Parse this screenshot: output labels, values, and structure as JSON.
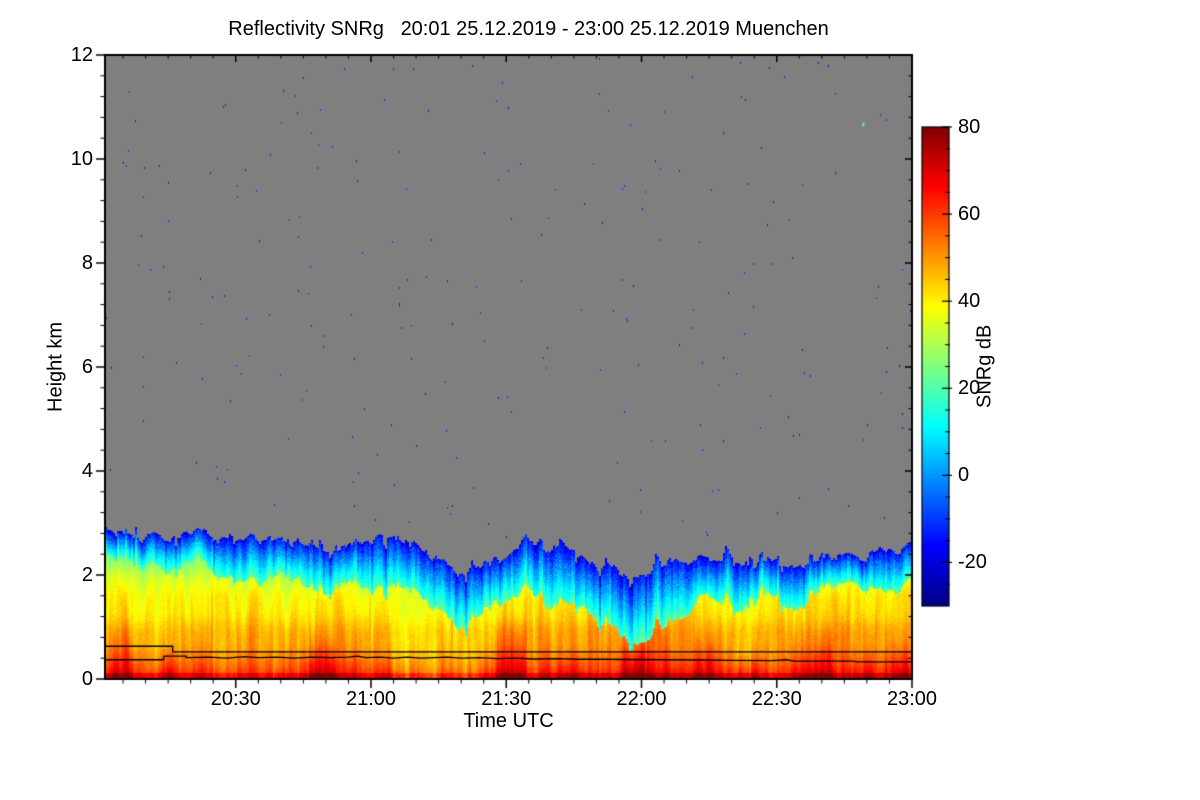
{
  "title": "Reflectivity SNRg   20:01 25.12.2019 - 23:00 25.12.2019 Muenchen",
  "axes": {
    "x": {
      "label": "Time UTC",
      "start": "20:01",
      "end": "23:00",
      "total_minutes": 179,
      "major_ticks": [
        {
          "label": "20:30",
          "min": 29
        },
        {
          "label": "21:00",
          "min": 59
        },
        {
          "label": "21:30",
          "min": 89
        },
        {
          "label": "22:00",
          "min": 119
        },
        {
          "label": "22:30",
          "min": 149
        },
        {
          "label": "23:00",
          "min": 179
        }
      ],
      "minor_step_min": 5
    },
    "y": {
      "label": "Height km",
      "min": 0,
      "max": 12,
      "major_ticks": [
        0,
        2,
        4,
        6,
        8,
        10,
        12
      ],
      "minor_step": 0.4
    }
  },
  "colorbar": {
    "label": "SNRg dB",
    "min": -30,
    "max": 80,
    "major_ticks": [
      80,
      60,
      40,
      20,
      0,
      -20
    ],
    "minor_step": 5
  },
  "colors": {
    "background": "#ffffff",
    "no_signal_gray": "#7f7f7f",
    "axis": "#000000",
    "overlay_line": "#000000",
    "speck_blues": [
      "#1f1fd0",
      "#2a2ae0",
      "#1818b8",
      "#3333dd"
    ],
    "jet_stops": [
      [
        0.0,
        "#000083"
      ],
      [
        0.125,
        "#0000ff"
      ],
      [
        0.375,
        "#00ffff"
      ],
      [
        0.625,
        "#ffff00"
      ],
      [
        0.875,
        "#ff0000"
      ],
      [
        1.0,
        "#800000"
      ]
    ]
  },
  "chart_data": {
    "type": "heatmap",
    "title": "Reflectivity SNRg   20:01 25.12.2019 - 23:00 25.12.2019 Muenchen",
    "site": "Muenchen",
    "date": "25.12.2019",
    "xlabel": "Time UTC",
    "ylabel": "Height km",
    "value_label": "SNRg dB",
    "x_range_utc": [
      "20:01",
      "23:00"
    ],
    "total_minutes": 179,
    "y_range_km": [
      0,
      12
    ],
    "value_range_db": [
      -30,
      80
    ],
    "x_ticks": [
      "20:30",
      "21:00",
      "21:30",
      "22:00",
      "22:30",
      "23:00"
    ],
    "y_ticks": [
      0,
      2,
      4,
      6,
      8,
      10,
      12
    ],
    "colorbar_ticks": [
      80,
      60,
      40,
      20,
      0,
      -20
    ],
    "echo_top_km": [
      [
        0,
        2.85
      ],
      [
        6,
        2.78
      ],
      [
        12,
        2.72
      ],
      [
        18,
        2.78
      ],
      [
        24,
        2.76
      ],
      [
        30,
        2.72
      ],
      [
        36,
        2.7
      ],
      [
        42,
        2.62
      ],
      [
        46,
        2.45
      ],
      [
        50,
        2.42
      ],
      [
        54,
        2.6
      ],
      [
        58,
        2.65
      ],
      [
        62,
        2.68
      ],
      [
        66,
        2.66
      ],
      [
        70,
        2.55
      ],
      [
        74,
        2.3
      ],
      [
        78,
        2.12
      ],
      [
        82,
        2.16
      ],
      [
        86,
        2.3
      ],
      [
        90,
        2.45
      ],
      [
        94,
        2.52
      ],
      [
        98,
        2.48
      ],
      [
        101,
        2.6
      ],
      [
        104,
        2.42
      ],
      [
        108,
        2.25
      ],
      [
        112,
        2.12
      ],
      [
        116,
        2.05
      ],
      [
        120,
        2.02
      ],
      [
        124,
        2.16
      ],
      [
        128,
        2.28
      ],
      [
        132,
        2.4
      ],
      [
        136,
        2.3
      ],
      [
        140,
        2.22
      ],
      [
        144,
        2.26
      ],
      [
        148,
        2.32
      ],
      [
        152,
        2.26
      ],
      [
        156,
        2.2
      ],
      [
        160,
        2.3
      ],
      [
        164,
        2.36
      ],
      [
        168,
        2.3
      ],
      [
        172,
        2.42
      ],
      [
        176,
        2.5
      ],
      [
        179,
        2.55
      ]
    ],
    "height_profile_db": [
      [
        0,
        66
      ],
      [
        0.1,
        63
      ],
      [
        0.25,
        58
      ],
      [
        0.45,
        54
      ],
      [
        0.7,
        50
      ],
      [
        1.0,
        47
      ],
      [
        1.3,
        44
      ],
      [
        1.6,
        40
      ],
      [
        1.9,
        35
      ],
      [
        2.2,
        28
      ],
      [
        2.5,
        21
      ],
      [
        2.8,
        16
      ],
      [
        3.1,
        12
      ]
    ],
    "blue_cap_depth_km": [
      [
        0,
        0.55
      ],
      [
        20,
        0.6
      ],
      [
        40,
        0.7
      ],
      [
        55,
        0.8
      ],
      [
        65,
        0.95
      ],
      [
        75,
        1.0
      ],
      [
        85,
        0.85
      ],
      [
        95,
        0.9
      ],
      [
        103,
        1.0
      ],
      [
        110,
        1.15
      ],
      [
        118,
        1.2
      ],
      [
        126,
        1.0
      ],
      [
        134,
        0.85
      ],
      [
        142,
        0.75
      ],
      [
        150,
        0.8
      ],
      [
        158,
        0.75
      ],
      [
        166,
        0.7
      ],
      [
        173,
        0.65
      ],
      [
        179,
        0.6
      ]
    ],
    "hot_streaks": [
      {
        "t0": 0,
        "t1": 7,
        "top_km": 1.1,
        "boost_db": 8
      },
      {
        "t0": 12,
        "t1": 17,
        "top_km": 0.7,
        "boost_db": 7
      },
      {
        "t0": 24,
        "t1": 31,
        "top_km": 1.6,
        "boost_db": -4
      },
      {
        "t0": 44,
        "t1": 52,
        "top_km": 0.9,
        "boost_db": 10
      },
      {
        "t0": 60,
        "t1": 64,
        "top_km": 0.5,
        "boost_db": 6
      },
      {
        "t0": 64,
        "t1": 84,
        "top_km": 1.8,
        "boost_db": -7
      },
      {
        "t0": 86,
        "t1": 94,
        "top_km": 1.2,
        "boost_db": 9
      },
      {
        "t0": 100,
        "t1": 106,
        "top_km": 0.6,
        "boost_db": 7
      },
      {
        "t0": 113,
        "t1": 122,
        "top_km": 0.8,
        "boost_db": 10
      },
      {
        "t0": 130,
        "t1": 137,
        "top_km": 0.9,
        "boost_db": 8
      },
      {
        "t0": 139,
        "t1": 146,
        "top_km": 0.5,
        "boost_db": 6
      },
      {
        "t0": 151,
        "t1": 162,
        "top_km": 1.0,
        "boost_db": 9
      },
      {
        "t0": 166,
        "t1": 171,
        "top_km": 0.6,
        "boost_db": 6
      },
      {
        "t0": 174,
        "t1": 179,
        "top_km": 0.8,
        "boost_db": 7
      }
    ],
    "overlay_lines_km": [
      [
        [
          0,
          0.63
        ],
        [
          15,
          0.63
        ],
        [
          15,
          0.52
        ],
        [
          179,
          0.52
        ]
      ],
      [
        [
          0,
          0.37
        ],
        [
          13,
          0.37
        ],
        [
          13,
          0.44
        ],
        [
          18,
          0.44
        ],
        [
          18,
          0.41
        ],
        [
          23,
          0.42
        ],
        [
          27,
          0.4
        ],
        [
          31,
          0.43
        ],
        [
          34,
          0.41
        ],
        [
          38,
          0.42
        ],
        [
          42,
          0.4
        ],
        [
          46,
          0.42
        ],
        [
          50,
          0.41
        ],
        [
          54,
          0.42
        ],
        [
          56,
          0.44
        ],
        [
          58,
          0.41
        ],
        [
          61,
          0.42
        ],
        [
          64,
          0.4
        ],
        [
          67,
          0.42
        ],
        [
          70,
          0.4
        ],
        [
          73,
          0.41
        ],
        [
          76,
          0.42
        ],
        [
          79,
          0.4
        ],
        [
          83,
          0.41
        ],
        [
          87,
          0.39
        ],
        [
          91,
          0.4
        ],
        [
          95,
          0.385
        ],
        [
          100,
          0.39
        ],
        [
          105,
          0.38
        ],
        [
          110,
          0.38
        ],
        [
          116,
          0.375
        ],
        [
          124,
          0.37
        ],
        [
          132,
          0.365
        ],
        [
          140,
          0.36
        ],
        [
          148,
          0.355
        ],
        [
          151,
          0.37
        ],
        [
          153,
          0.345
        ],
        [
          166,
          0.345
        ],
        [
          167,
          0.33
        ],
        [
          179,
          0.33
        ]
      ]
    ],
    "clear_air_specks": {
      "count": 240
    },
    "accent_specks": [
      {
        "t": 168,
        "km": 10.7,
        "color": "#55eebb"
      }
    ],
    "no_signal_color": "#7f7f7f"
  }
}
